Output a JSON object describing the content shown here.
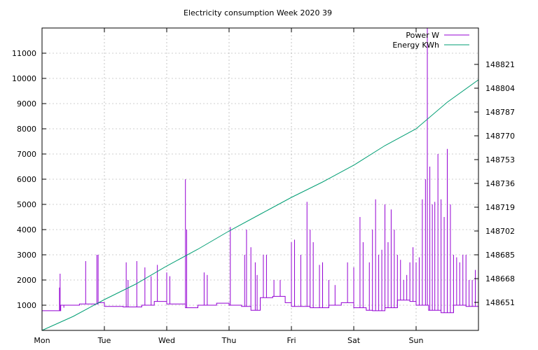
{
  "chart_data": {
    "type": "line",
    "title": "Electricity consumption Week 2020 39",
    "xlabel": "",
    "ylabel": "",
    "x_ticks": [
      "Mon",
      "Tue",
      "Wed",
      "Thu",
      "Fri",
      "Sat",
      "Sun"
    ],
    "xlim": [
      0,
      7
    ],
    "ylim": [
      0,
      12000
    ],
    "y_ticks": [
      1000,
      2000,
      3000,
      4000,
      5000,
      6000,
      7000,
      8000,
      9000,
      10000,
      11000
    ],
    "y2lim": [
      148631,
      148847
    ],
    "y2_ticks": [
      148651,
      148668,
      148685,
      148702,
      148719,
      148736,
      148753,
      148770,
      148787,
      148804,
      148821
    ],
    "grid": true,
    "legend_position": "top-right",
    "colors": {
      "power": "#9400d3",
      "energy": "#009e73"
    },
    "series": [
      {
        "name": "Power W",
        "axis": "left",
        "baseline": [
          [
            0.0,
            780
          ],
          [
            0.25,
            780
          ],
          [
            0.3,
            1000
          ],
          [
            0.6,
            1050
          ],
          [
            0.9,
            1100
          ],
          [
            1.0,
            950
          ],
          [
            1.3,
            930
          ],
          [
            1.6,
            1000
          ],
          [
            1.8,
            1150
          ],
          [
            2.0,
            1050
          ],
          [
            2.3,
            900
          ],
          [
            2.5,
            1000
          ],
          [
            2.8,
            1080
          ],
          [
            3.0,
            1000
          ],
          [
            3.2,
            950
          ],
          [
            3.35,
            800
          ],
          [
            3.5,
            1300
          ],
          [
            3.7,
            1350
          ],
          [
            3.9,
            1100
          ],
          [
            4.0,
            950
          ],
          [
            4.3,
            900
          ],
          [
            4.6,
            1000
          ],
          [
            4.8,
            1100
          ],
          [
            5.0,
            900
          ],
          [
            5.2,
            800
          ],
          [
            5.3,
            780
          ],
          [
            5.5,
            900
          ],
          [
            5.7,
            1200
          ],
          [
            5.9,
            1150
          ],
          [
            6.0,
            1000
          ],
          [
            6.2,
            800
          ],
          [
            6.4,
            700
          ],
          [
            6.6,
            1000
          ],
          [
            6.8,
            950
          ],
          [
            7.0,
            1000
          ]
        ],
        "spikes": [
          [
            0.28,
            1700
          ],
          [
            0.29,
            2250
          ],
          [
            0.35,
            900
          ],
          [
            0.7,
            2750
          ],
          [
            0.88,
            3000
          ],
          [
            0.9,
            3000
          ],
          [
            1.35,
            2700
          ],
          [
            1.38,
            2000
          ],
          [
            1.52,
            2750
          ],
          [
            1.65,
            2500
          ],
          [
            1.75,
            2150
          ],
          [
            1.85,
            2600
          ],
          [
            2.0,
            2300
          ],
          [
            2.05,
            2150
          ],
          [
            2.3,
            6000
          ],
          [
            2.32,
            4000
          ],
          [
            2.6,
            2300
          ],
          [
            2.65,
            2200
          ],
          [
            3.02,
            4100
          ],
          [
            3.25,
            3000
          ],
          [
            3.28,
            4000
          ],
          [
            3.35,
            3300
          ],
          [
            3.42,
            2700
          ],
          [
            3.45,
            2200
          ],
          [
            3.55,
            3000
          ],
          [
            3.6,
            3000
          ],
          [
            3.72,
            2000
          ],
          [
            3.82,
            2000
          ],
          [
            4.0,
            3500
          ],
          [
            4.05,
            3600
          ],
          [
            4.15,
            3000
          ],
          [
            4.25,
            5100
          ],
          [
            4.3,
            4000
          ],
          [
            4.35,
            3500
          ],
          [
            4.45,
            2600
          ],
          [
            4.5,
            2700
          ],
          [
            4.6,
            2000
          ],
          [
            4.7,
            1800
          ],
          [
            4.9,
            2700
          ],
          [
            5.0,
            2500
          ],
          [
            5.1,
            4500
          ],
          [
            5.15,
            3500
          ],
          [
            5.25,
            2700
          ],
          [
            5.3,
            4000
          ],
          [
            5.35,
            5200
          ],
          [
            5.4,
            3000
          ],
          [
            5.45,
            3200
          ],
          [
            5.5,
            5000
          ],
          [
            5.55,
            3500
          ],
          [
            5.6,
            4800
          ],
          [
            5.65,
            4000
          ],
          [
            5.7,
            3000
          ],
          [
            5.75,
            2800
          ],
          [
            5.8,
            2000
          ],
          [
            5.85,
            2200
          ],
          [
            5.9,
            2700
          ],
          [
            5.95,
            3300
          ],
          [
            6.0,
            2700
          ],
          [
            6.05,
            2900
          ],
          [
            6.1,
            5200
          ],
          [
            6.15,
            6000
          ],
          [
            6.18,
            12000
          ],
          [
            6.22,
            6500
          ],
          [
            6.26,
            5000
          ],
          [
            6.3,
            5100
          ],
          [
            6.35,
            7000
          ],
          [
            6.4,
            5200
          ],
          [
            6.45,
            4500
          ],
          [
            6.5,
            7200
          ],
          [
            6.55,
            5000
          ],
          [
            6.6,
            3000
          ],
          [
            6.65,
            2900
          ],
          [
            6.7,
            2700
          ],
          [
            6.75,
            3000
          ],
          [
            6.8,
            3000
          ],
          [
            6.85,
            2000
          ],
          [
            6.9,
            2000
          ],
          [
            6.95,
            2400
          ]
        ]
      },
      {
        "name": "Energy KWh",
        "axis": "right",
        "points": [
          [
            0.0,
            148631
          ],
          [
            0.5,
            148641
          ],
          [
            1.0,
            148653
          ],
          [
            1.5,
            148664
          ],
          [
            2.0,
            148677
          ],
          [
            2.5,
            148689
          ],
          [
            3.0,
            148702
          ],
          [
            3.5,
            148714
          ],
          [
            4.0,
            148726
          ],
          [
            4.5,
            148737
          ],
          [
            5.0,
            148749
          ],
          [
            5.5,
            148763
          ],
          [
            6.0,
            148775
          ],
          [
            6.5,
            148794
          ],
          [
            7.0,
            148810
          ]
        ]
      }
    ]
  }
}
